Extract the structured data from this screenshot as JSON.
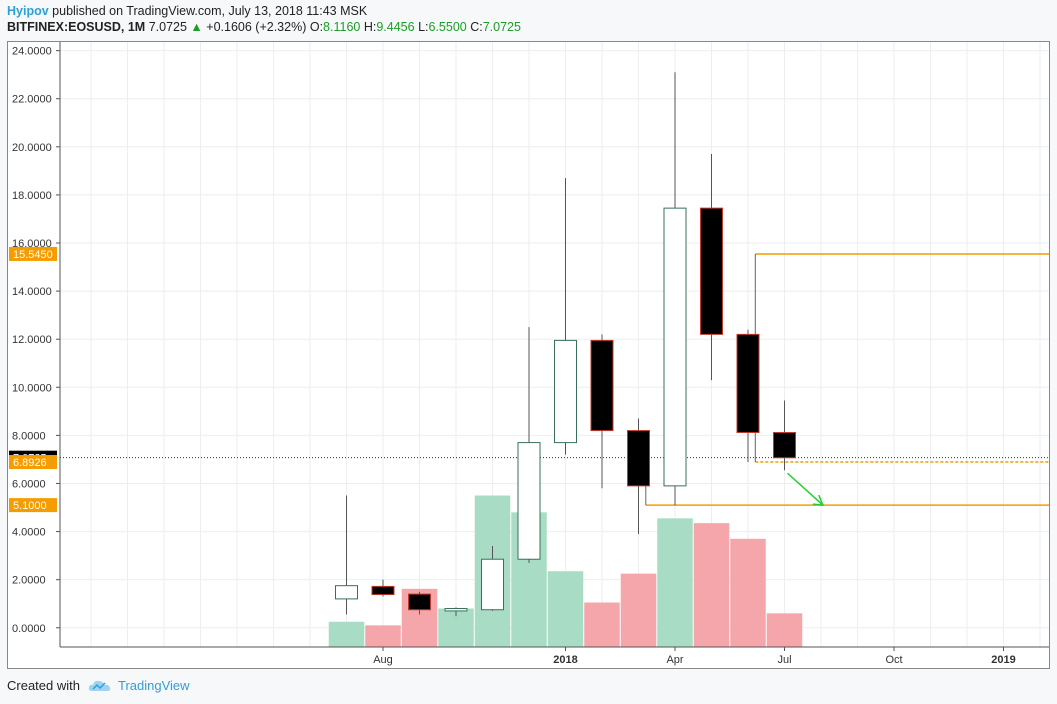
{
  "header": {
    "author": "Hyipov",
    "published": "published on TradingView.com, July 13, 2018 11:43 MSK",
    "symbol": "BITFINEX:EOSUSD, 1M",
    "last": "7.0725",
    "up_arrow": "▲",
    "change": "+0.1606 (+2.32%)",
    "o_label": "O:",
    "o_value": "8.1160",
    "h_label": "H:",
    "h_value": "9.4456",
    "l_label": "L:",
    "l_value": "6.5500",
    "c_label": "C:",
    "c_value": "7.0725"
  },
  "footer": {
    "created_with": "Created with",
    "brand": "TradingView",
    "logo_icon": "tradingview-cloud-icon"
  },
  "colors": {
    "up_candle_border": "#3a6f5c",
    "down_candle_fill": "#000000",
    "down_candle_border": "#c0392b",
    "volume_up": "#a8dcc4",
    "volume_down": "#f4a6ab",
    "orange": "#f59c00",
    "arrow_green": "#1fd12a",
    "price_label_bg": "#000000"
  },
  "chart_data": {
    "type": "candlestick",
    "ylim": [
      -0.8,
      24.4
    ],
    "y_ticks": [
      "24.0000",
      "22.0000",
      "20.0000",
      "18.0000",
      "16.0000",
      "14.0000",
      "12.0000",
      "10.0000",
      "8.0000",
      "6.0000",
      "4.0000",
      "2.0000",
      "0.0000"
    ],
    "y_tick_values": [
      24,
      22,
      20,
      18,
      16,
      14,
      12,
      10,
      8,
      6,
      4,
      2,
      0
    ],
    "x_ticks": [
      {
        "label": "Aug",
        "month": 0,
        "bold": false
      },
      {
        "label": "2018",
        "month": 5,
        "bold": true
      },
      {
        "label": "Apr",
        "month": 8,
        "bold": false
      },
      {
        "label": "Jul",
        "month": 11,
        "bold": false
      },
      {
        "label": "Oct",
        "month": 14,
        "bold": false
      },
      {
        "label": "2019",
        "month": 17,
        "bold": true
      }
    ],
    "candles": [
      {
        "month": "2017-07",
        "open": 1.2,
        "high": 5.5,
        "low": 0.55,
        "close": 1.75
      },
      {
        "month": "2017-08",
        "open": 1.72,
        "high": 2.0,
        "low": 1.3,
        "close": 1.38
      },
      {
        "month": "2017-09",
        "open": 1.4,
        "high": 1.5,
        "low": 0.55,
        "close": 0.75
      },
      {
        "month": "2017-10",
        "open": 0.7,
        "high": 0.85,
        "low": 0.48,
        "close": 0.8
      },
      {
        "month": "2017-11",
        "open": 0.75,
        "high": 3.4,
        "low": 0.7,
        "close": 2.85
      },
      {
        "month": "2017-12",
        "open": 2.85,
        "high": 12.5,
        "low": 2.7,
        "close": 7.7
      },
      {
        "month": "2018-01",
        "open": 7.7,
        "high": 18.7,
        "low": 7.2,
        "close": 11.95
      },
      {
        "month": "2018-02",
        "open": 11.95,
        "high": 12.2,
        "low": 5.8,
        "close": 8.2
      },
      {
        "month": "2018-03",
        "open": 8.2,
        "high": 8.7,
        "low": 3.9,
        "close": 5.9
      },
      {
        "month": "2018-04",
        "open": 5.9,
        "high": 23.1,
        "low": 5.1,
        "close": 17.45
      },
      {
        "month": "2018-05",
        "open": 17.45,
        "high": 19.7,
        "low": 10.3,
        "close": 12.2
      },
      {
        "month": "2018-06",
        "open": 12.2,
        "high": 12.4,
        "low": 6.89,
        "close": 8.12
      },
      {
        "month": "2018-07",
        "open": 8.12,
        "high": 9.45,
        "low": 6.55,
        "close": 7.07
      }
    ],
    "volume": [
      {
        "month": "2017-07",
        "value": 0.25,
        "direction": "up"
      },
      {
        "month": "2017-08",
        "value": 0.1,
        "direction": "down"
      },
      {
        "month": "2017-09",
        "value": 1.62,
        "direction": "down"
      },
      {
        "month": "2017-10",
        "value": 0.8,
        "direction": "up"
      },
      {
        "month": "2017-11",
        "value": 5.5,
        "direction": "up"
      },
      {
        "month": "2017-12",
        "value": 4.8,
        "direction": "up"
      },
      {
        "month": "2018-01",
        "value": 2.35,
        "direction": "up"
      },
      {
        "month": "2018-02",
        "value": 1.05,
        "direction": "down"
      },
      {
        "month": "2018-03",
        "value": 2.25,
        "direction": "down"
      },
      {
        "month": "2018-04",
        "value": 4.55,
        "direction": "up"
      },
      {
        "month": "2018-05",
        "value": 4.35,
        "direction": "down"
      },
      {
        "month": "2018-06",
        "value": 3.7,
        "direction": "down"
      },
      {
        "month": "2018-07",
        "value": 0.6,
        "direction": "down"
      }
    ],
    "price_labels": [
      {
        "text": "15.5450",
        "value": 15.545,
        "style": "orange"
      },
      {
        "text": "7.0725",
        "value": 7.0725,
        "style": "black"
      },
      {
        "text": "6.8926",
        "value": 6.8926,
        "style": "orange"
      },
      {
        "text": "5.1000",
        "value": 5.1,
        "style": "orange"
      }
    ],
    "levels": [
      {
        "value": 15.545,
        "start_month": 10.2,
        "solid": true
      },
      {
        "value": 6.8926,
        "start_month": 10.2,
        "solid": false
      },
      {
        "value": 5.1,
        "start_month": 7.2,
        "solid": true
      }
    ],
    "last_price_line": 7.0725,
    "arrow": {
      "from_month": 11,
      "from_value": 6.55,
      "to_month": 12.05,
      "to_value": 5.1
    }
  }
}
